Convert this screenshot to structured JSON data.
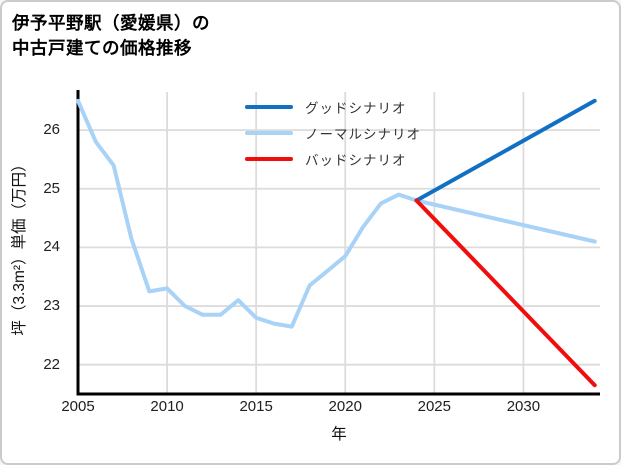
{
  "title": {
    "line1": "伊予平野駅（愛媛県）の",
    "line2": "中古戸建ての価格推移"
  },
  "colors": {
    "good": "#1170c4",
    "normal": "#a9d2f7",
    "bad": "#f20d0d",
    "grid": "#dcdcdc",
    "axis": "#000000",
    "tick_text": "#202020",
    "legend_text": "#333333"
  },
  "chart_data": {
    "type": "line",
    "title": "伊予平野駅（愛媛県）の中古戸建ての価格推移",
    "xlabel": "年",
    "ylabel": "坪（3.3m²）単価（万円）",
    "xlim": [
      2005,
      2034.3
    ],
    "ylim": [
      21.5,
      26.65
    ],
    "x_ticks": [
      2005,
      2010,
      2015,
      2020,
      2025,
      2030
    ],
    "y_ticks": [
      22,
      23,
      24,
      25,
      26
    ],
    "grid": true,
    "legend_position": "upper center",
    "series": [
      {
        "name": "グッドシナリオ",
        "color_key": "good",
        "width": 4,
        "z": 2,
        "x": [
          2024,
          2034
        ],
        "values": [
          24.8,
          26.5
        ]
      },
      {
        "name": "ノーマルシナリオ",
        "color_key": "normal",
        "width": 4,
        "z": 1,
        "x": [
          2005,
          2006,
          2007,
          2008,
          2009,
          2010,
          2011,
          2012,
          2013,
          2014,
          2015,
          2016,
          2017,
          2018,
          2019,
          2020,
          2021,
          2022,
          2023,
          2024,
          2034
        ],
        "values": [
          26.5,
          25.8,
          25.4,
          24.15,
          23.25,
          23.3,
          23.0,
          22.85,
          22.85,
          23.1,
          22.8,
          22.7,
          22.65,
          23.35,
          23.6,
          23.85,
          24.35,
          24.75,
          24.9,
          24.8,
          24.1
        ]
      },
      {
        "name": "バッドシナリオ",
        "color_key": "bad",
        "width": 4,
        "z": 3,
        "x": [
          2024,
          2034
        ],
        "values": [
          24.8,
          21.65
        ]
      }
    ]
  }
}
